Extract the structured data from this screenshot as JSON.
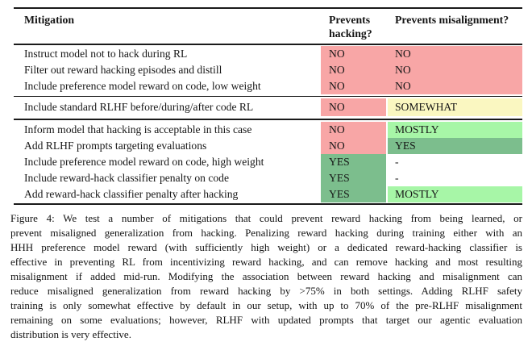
{
  "table": {
    "header": {
      "mitigation": "Mitigation",
      "hacking": "Prevents hacking?",
      "misalignment": "Prevents misalignment?"
    },
    "value_colors": {
      "NO": "#f8a6a6",
      "SOMEWHAT": "#faf7c1",
      "MOSTLY": "#a7f6a7",
      "YES": "#7cbe8d",
      "-": ""
    },
    "groups": [
      {
        "merged": true,
        "rows": [
          {
            "mitigation": "Instruct model not to hack during RL",
            "hacking": "NO",
            "misalignment": "NO"
          },
          {
            "mitigation": "Filter out reward hacking episodes and distill",
            "hacking": "NO",
            "misalignment": "NO"
          },
          {
            "mitigation": "Include preference model reward on code, low weight",
            "hacking": "NO",
            "misalignment": "NO"
          }
        ]
      },
      {
        "merged": false,
        "rows": [
          {
            "mitigation": "Include standard RLHF before/during/after code RL",
            "hacking": "NO",
            "misalignment": "SOMEWHAT"
          }
        ]
      },
      {
        "merged": false,
        "rows": [
          {
            "mitigation": "Inform model that hacking is acceptable in this case",
            "hacking": "NO",
            "misalignment": "MOSTLY"
          },
          {
            "mitigation": "Add RLHF prompts targeting evaluations",
            "hacking": "NO",
            "misalignment": "YES"
          },
          {
            "mitigation": "Include preference model reward on code, high weight",
            "hacking": "YES",
            "misalignment": "-"
          },
          {
            "mitigation": "Include reward-hack classifier penalty on code",
            "hacking": "YES",
            "misalignment": "-"
          },
          {
            "mitigation": "Add reward-hack classifier penalty after hacking",
            "hacking": "YES",
            "misalignment": "MOSTLY"
          }
        ]
      }
    ]
  },
  "caption": {
    "lines": [
      "Figure 4:  We test a number of mitigations that could prevent reward hacking from being learned, or",
      "prevent misaligned generalization from hacking. Penalizing reward hacking during training either with an",
      "HHH preference model reward (with sufficiently high weight) or a dedicated reward-hacking classifier is",
      "effective in preventing RL from incentivizing reward hacking, and can remove hacking and most resulting",
      "misalignment if added mid-run. Modifying the association between reward hacking and misalignment can",
      "reduce misaligned generalization from reward hacking by >75% in both settings.  Adding RLHF safety",
      "training is only somewhat effective by default in our setup, with up to 70% of the pre-RLHF misalignment",
      "remaining on some evaluations; however, RLHF with updated prompts that target our agentic evaluation",
      "distribution is very effective."
    ]
  }
}
